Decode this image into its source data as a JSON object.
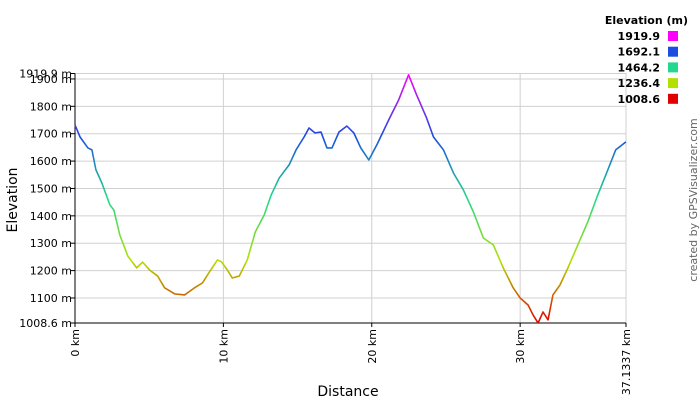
{
  "chart_data": {
    "type": "line",
    "xlabel": "Distance",
    "ylabel": "Elevation",
    "credit": "created by GPSVisualizer.com",
    "legend_title": "Elevation (m)",
    "color_scale": [
      {
        "value": 1919.9,
        "color": "#ff00ff"
      },
      {
        "value": 1692.1,
        "color": "#1a4de0"
      },
      {
        "value": 1464.2,
        "color": "#22d88c"
      },
      {
        "value": 1236.4,
        "color": "#b4e000"
      },
      {
        "value": 1008.6,
        "color": "#e00000"
      }
    ],
    "x": [
      0,
      0.34,
      0.87,
      1.14,
      1.41,
      1.81,
      2.35,
      2.62,
      3.02,
      3.56,
      4.16,
      4.56,
      5.03,
      5.57,
      6.04,
      6.71,
      7.38,
      8.05,
      8.59,
      9.06,
      9.6,
      9.87,
      10.27,
      10.6,
      11.07,
      11.61,
      12.15,
      12.75,
      13.22,
      13.76,
      14.43,
      14.9,
      15.44,
      15.77,
      16.17,
      16.58,
      16.98,
      17.32,
      17.79,
      18.32,
      18.79,
      19.26,
      19.8,
      20.34,
      21.14,
      21.81,
      22.48,
      23.02,
      23.69,
      24.16,
      24.83,
      25.5,
      26.17,
      26.85,
      27.52,
      28.19,
      28.86,
      29.53,
      30,
      30.54,
      30.87,
      31.21,
      31.54,
      31.88,
      32.21,
      32.68,
      33.22,
      33.89,
      34.56,
      35.23,
      35.91,
      36.44,
      37.13
    ],
    "values": [
      1732,
      1688,
      1648,
      1641,
      1568,
      1520,
      1440,
      1421,
      1330,
      1253,
      1210,
      1231,
      1202,
      1180,
      1137,
      1115,
      1111,
      1137,
      1155,
      1195,
      1239,
      1232,
      1202,
      1173,
      1180,
      1239,
      1341,
      1403,
      1476,
      1538,
      1586,
      1641,
      1688,
      1721,
      1703,
      1706,
      1648,
      1648,
      1706,
      1728,
      1703,
      1648,
      1604,
      1659,
      1750,
      1823,
      1915,
      1842,
      1758,
      1688,
      1641,
      1557,
      1495,
      1414,
      1319,
      1294,
      1210,
      1137,
      1100,
      1074,
      1038,
      1008.6,
      1049,
      1020,
      1111,
      1147,
      1210,
      1294,
      1378,
      1476,
      1568,
      1641,
      1670
    ],
    "xlim": [
      0,
      37.1337
    ],
    "xticks": [
      {
        "value": 0,
        "label": "0 km"
      },
      {
        "value": 10,
        "label": "10 km"
      },
      {
        "value": 20,
        "label": "20 km"
      },
      {
        "value": 30,
        "label": "30 km"
      },
      {
        "value": 37.1337,
        "label": "37.1337 km"
      }
    ],
    "ylim": [
      1008.6,
      1919.9
    ],
    "yticks": [
      {
        "value": 1008.6,
        "label": "1008.6 m"
      },
      {
        "value": 1100,
        "label": "1100 m"
      },
      {
        "value": 1200,
        "label": "1200 m"
      },
      {
        "value": 1300,
        "label": "1300 m"
      },
      {
        "value": 1400,
        "label": "1400 m"
      },
      {
        "value": 1500,
        "label": "1500 m"
      },
      {
        "value": 1600,
        "label": "1600 m"
      },
      {
        "value": 1700,
        "label": "1700 m"
      },
      {
        "value": 1800,
        "label": "1800 m"
      },
      {
        "value": 1900,
        "label": "1900 m"
      },
      {
        "value": 1919.9,
        "label": "1919.9 m"
      }
    ],
    "grid": true
  }
}
